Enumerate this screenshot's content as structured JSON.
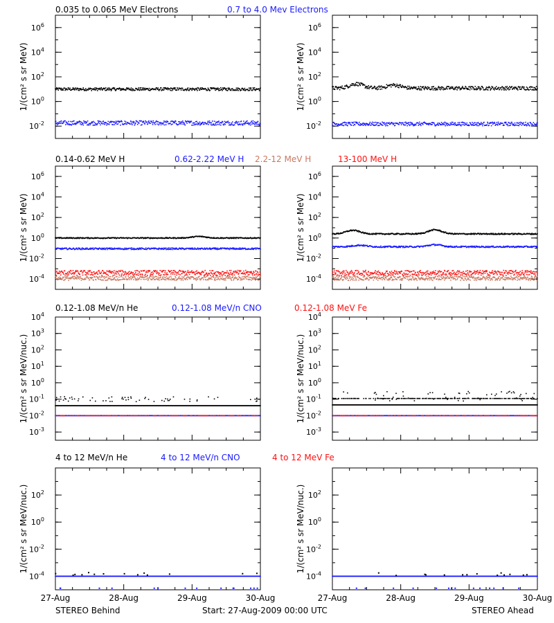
{
  "colors": {
    "black": "#000000",
    "blue": "#1a1aff",
    "tan": "#c87860",
    "red": "#ff1010"
  },
  "footer": {
    "left": "STEREO Behind",
    "center": "Start: 27-Aug-2009 00:00 UTC",
    "right": "STEREO Ahead"
  },
  "chart_data": [
    {
      "id": "row1",
      "type": "scatter",
      "ylabel": "1/(cm² s sr MeV)",
      "log_y": true,
      "ylim_exp": [
        -3,
        7
      ],
      "tick_exps": [
        -2,
        0,
        2,
        4,
        6
      ],
      "x_ticks": [
        "27-Aug",
        "28-Aug",
        "29-Aug",
        "30-Aug"
      ],
      "xlim_days": [
        0,
        3
      ],
      "legend": [
        {
          "text": "0.035 to 0.065 MeV Electrons",
          "color": "black"
        },
        {
          "text": "0.7 to 4.0 Mev Electrons",
          "color": "blue"
        }
      ],
      "panels": {
        "behind": [
          {
            "color": "black",
            "level": 10,
            "spread": 0.12
          },
          {
            "color": "blue",
            "level": 0.018,
            "spread": 0.18
          }
        ],
        "ahead": [
          {
            "color": "black",
            "level": 12,
            "spread": 0.15,
            "bumps": [
              [
                0.35,
                0.35
              ],
              [
                0.9,
                0.25
              ]
            ]
          },
          {
            "color": "blue",
            "level": 0.015,
            "spread": 0.15
          }
        ]
      }
    },
    {
      "id": "row2",
      "type": "scatter",
      "ylabel": "1/(cm² s sr MeV)",
      "log_y": true,
      "ylim_exp": [
        -5,
        7
      ],
      "tick_exps": [
        -4,
        -2,
        0,
        2,
        4,
        6
      ],
      "x_ticks": [
        "27-Aug",
        "28-Aug",
        "29-Aug",
        "30-Aug"
      ],
      "xlim_days": [
        0,
        3
      ],
      "legend": [
        {
          "text": "0.14-0.62 MeV H",
          "color": "black"
        },
        {
          "text": "0.62-2.22 MeV H",
          "color": "blue"
        },
        {
          "text": "2.2-12 MeV H",
          "color": "tan"
        },
        {
          "text": "13-100 MeV H",
          "color": "red"
        }
      ],
      "panels": {
        "behind": [
          {
            "color": "black",
            "level": 1.0,
            "spread": 0.05,
            "bumps": [
              [
                2.1,
                0.15
              ]
            ]
          },
          {
            "color": "blue",
            "level": 0.09,
            "spread": 0.08
          },
          {
            "color": "red",
            "level": 0.0004,
            "spread": 0.25
          },
          {
            "color": "tan",
            "level": 0.00012,
            "spread": 0.2
          }
        ],
        "ahead": [
          {
            "color": "black",
            "level": 2.5,
            "spread": 0.06,
            "bumps": [
              [
                0.3,
                0.35
              ],
              [
                1.5,
                0.4
              ]
            ]
          },
          {
            "color": "blue",
            "level": 0.14,
            "spread": 0.07,
            "bumps": [
              [
                0.4,
                0.15
              ],
              [
                1.5,
                0.2
              ]
            ]
          },
          {
            "color": "red",
            "level": 0.0004,
            "spread": 0.25
          },
          {
            "color": "tan",
            "level": 0.00012,
            "spread": 0.2
          }
        ]
      }
    },
    {
      "id": "row3",
      "type": "scatter",
      "ylabel": "1/(cm² s sr MeV/nuc.)",
      "log_y": true,
      "ylim_exp": [
        -3.5,
        4
      ],
      "tick_exps": [
        -3,
        -2,
        -1,
        0,
        1,
        2,
        3,
        4
      ],
      "x_ticks": [
        "27-Aug",
        "28-Aug",
        "29-Aug",
        "30-Aug"
      ],
      "xlim_days": [
        0,
        3
      ],
      "legend": [
        {
          "text": "0.12-1.08 MeV/n He",
          "color": "black"
        },
        {
          "text": "0.12-1.08 MeV/n CNO",
          "color": "blue"
        },
        {
          "text": "0.12-1.08 MeV Fe",
          "color": "red"
        }
      ],
      "panels": {
        "behind": [
          {
            "color": "black",
            "level": 0.04,
            "spread": 0.0,
            "style": "floor"
          },
          {
            "color": "black",
            "level": 0.1,
            "spread": 0.15,
            "style": "sparse"
          },
          {
            "color": "blue",
            "level": 0.01,
            "spread": 0.0,
            "style": "floor"
          },
          {
            "color": "red",
            "level": 0.01,
            "spread": 0.0,
            "style": "floor-sparse"
          }
        ],
        "ahead": [
          {
            "color": "black",
            "level": 0.045,
            "spread": 0.0,
            "style": "floor"
          },
          {
            "color": "black",
            "level": 0.11,
            "spread": 0.0,
            "style": "floor-sparse"
          },
          {
            "color": "black",
            "level": 0.15,
            "spread": 0.3,
            "style": "sparse",
            "bumps": [
              [
                0.3,
                0.4
              ]
            ]
          },
          {
            "color": "blue",
            "level": 0.01,
            "spread": 0.0,
            "style": "floor"
          },
          {
            "color": "red",
            "level": 0.01,
            "spread": 0.0,
            "style": "floor-sparse"
          }
        ]
      }
    },
    {
      "id": "row4",
      "type": "scatter",
      "ylabel": "1/(cm² s sr MeV/nuc.)",
      "log_y": true,
      "ylim_exp": [
        -5,
        4
      ],
      "tick_exps": [
        -4,
        -2,
        0,
        2
      ],
      "x_ticks": [
        "27-Aug",
        "28-Aug",
        "29-Aug",
        "30-Aug"
      ],
      "xlim_days": [
        0,
        3
      ],
      "legend": [
        {
          "text": "4 to 12 MeV/n He",
          "color": "black"
        },
        {
          "text": "4 to 12 MeV/n CNO",
          "color": "blue"
        },
        {
          "text": "4 to 12 MeV Fe",
          "color": "red"
        }
      ],
      "panels": {
        "behind": [
          {
            "color": "blue",
            "level": 0.0001,
            "spread": 0.0,
            "style": "floor"
          },
          {
            "color": "black",
            "level": 0.00015,
            "spread": 0.12,
            "style": "rare"
          },
          {
            "color": "blue",
            "level": 1.3e-05,
            "spread": 0.0,
            "style": "rare"
          }
        ],
        "ahead": [
          {
            "color": "blue",
            "level": 0.0001,
            "spread": 0.0,
            "style": "floor"
          },
          {
            "color": "black",
            "level": 0.00015,
            "spread": 0.12,
            "style": "rare"
          },
          {
            "color": "blue",
            "level": 1.3e-05,
            "spread": 0.0,
            "style": "rare"
          }
        ]
      }
    }
  ]
}
